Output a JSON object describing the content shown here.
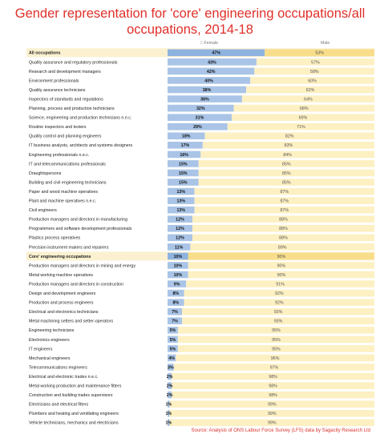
{
  "colors": {
    "female": "#a9c4e6",
    "male": "#fdf0c2",
    "female_bold": "#8fb3df",
    "male_bold": "#f8dd8a",
    "title": "#e0302a",
    "source": "#d9342b"
  },
  "chart_data": {
    "type": "bar",
    "stacked": true,
    "orientation": "horizontal",
    "title": "Gender representation for 'core' engineering occupations/all occupations, 2014-18",
    "legend": {
      "position": "top",
      "entries": [
        "Female",
        "Male"
      ]
    },
    "source": "Source: Analysis of ONS Labour Force Survey (LFS) data by Sagacity Research Ltd",
    "xlim": [
      0,
      100
    ],
    "categories": [
      "All occupations",
      "Quality assurance and regulatory professionals",
      "Research and development managers",
      "Environment professionals",
      "Quality assurance technicians",
      "Inspectors of standards and regulations",
      "Planning, process and production technicians",
      "Science, engineering and production technicians n.e.c.",
      "Routine inspectors and testers",
      "Quality control and planning engineers",
      "IT business analysts, architects and systems designers",
      "Engineering professionals n.e.c.",
      "IT and telecommunications professionals",
      "Draughtspersons",
      "Building and civil engineering technicians",
      "Paper and wood machine operatives",
      "Plant and machine operatives n.e.c.",
      "Civil engineers",
      "Production managers and directors in manufacturing",
      "Programmers and software development professionals",
      "Plastics process operatives",
      "Precision instrument makers and repairers",
      "Core' engineering occupations",
      "Production managers and directors in mining and energy",
      "Metal working machine operatives",
      "Production managers and directors in construction",
      "Design and development engineers",
      "Production and process engineers",
      "Electrical and electronics technicians",
      "Metal machining setters and setter-operators",
      "Engineering technicians",
      "Electronics engineers",
      "IT engineers",
      "Mechanical engineers",
      "Telecommunications engineers",
      "Electrical and electronic trades n.e.c.",
      "Metal working production and maintenance fitters",
      "Construction and building trades supervisors",
      "Electricians and electrical fitters",
      "Plumbers and heating and ventilating engineers",
      "Vehicle technicians, mechanics and electricians"
    ],
    "bold_categories": [
      0,
      22
    ],
    "series": [
      {
        "name": "Female",
        "values": [
          47,
          43,
          42,
          40,
          38,
          36,
          32,
          31,
          29,
          18,
          17,
          16,
          15,
          15,
          15,
          13,
          13,
          13,
          12,
          12,
          12,
          11,
          10,
          10,
          10,
          9,
          8,
          8,
          7,
          7,
          5,
          5,
          5,
          4,
          3,
          2,
          2,
          2,
          1,
          1,
          1
        ],
        "labels": [
          "47%",
          "43%",
          "42%",
          "40%",
          "38%",
          "36%",
          "32%",
          "31%",
          "29%",
          "18%",
          "17%",
          "16%",
          "15%",
          "15%",
          "15%",
          "13%",
          "13%",
          "13%",
          "12%",
          "12%",
          "12%",
          "11%",
          "10%",
          "10%",
          "10%",
          "9%",
          "8%",
          "8%",
          "7%",
          "7%",
          "5%",
          "5%",
          "5%",
          "4%",
          "3%",
          "2%",
          "2%",
          "2%",
          "1%",
          "1%",
          "1%"
        ]
      },
      {
        "name": "Male",
        "values": [
          53,
          57,
          58,
          60,
          62,
          64,
          68,
          69,
          71,
          82,
          83,
          84,
          85,
          85,
          85,
          87,
          87,
          87,
          88,
          88,
          88,
          89,
          90,
          90,
          90,
          91,
          92,
          92,
          93,
          93,
          95,
          95,
          95,
          96,
          97,
          98,
          98,
          98,
          99,
          99,
          99
        ],
        "labels": [
          "53%",
          "57%",
          "58%",
          "60%",
          "62%",
          "64%",
          "68%",
          "69%",
          "71%",
          "82%",
          "83%",
          "84%",
          "85%",
          "85%",
          "85%",
          "87%",
          "87%",
          "87%",
          "88%",
          "88%",
          "88%",
          "89%",
          "90%",
          "90%",
          "90%",
          "91%",
          "92%",
          "92%",
          "93%",
          "93%",
          "95%",
          "95%",
          "95%",
          "96%",
          "97%",
          "98%",
          "98%",
          "98%",
          "99%",
          "99%",
          "99%"
        ]
      }
    ]
  }
}
